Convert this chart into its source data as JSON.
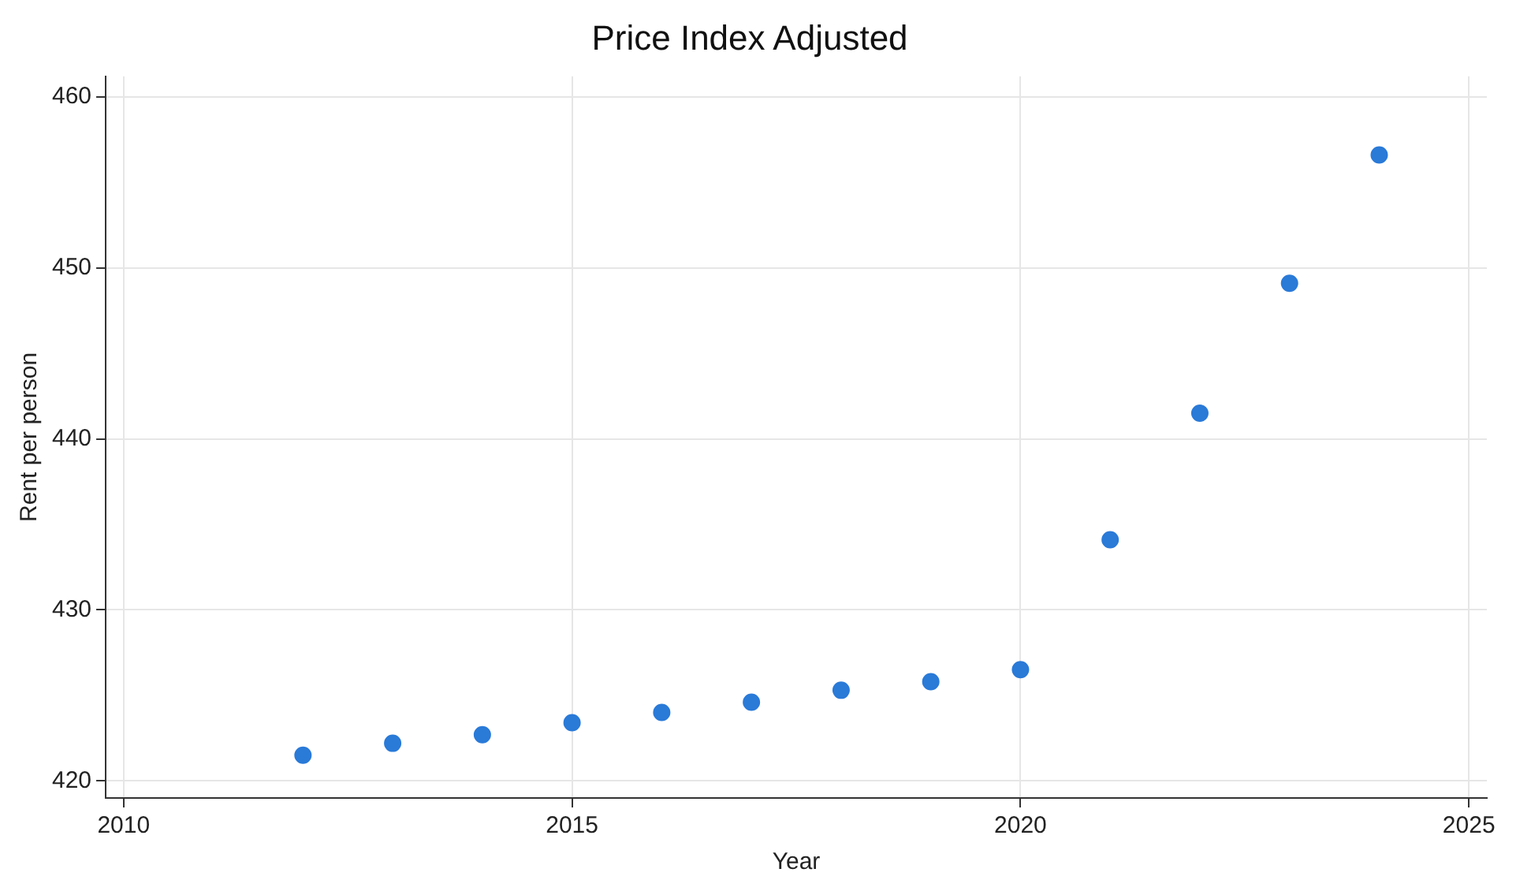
{
  "chart_data": {
    "type": "scatter",
    "title": "Price Index Adjusted",
    "xlabel": "Year",
    "ylabel": "Rent per person",
    "x": [
      2012,
      2013,
      2014,
      2015,
      2016,
      2017,
      2018,
      2019,
      2020,
      2021,
      2022,
      2023,
      2024
    ],
    "series": [
      {
        "color": "#2a7ad8",
        "values": [
          421.5,
          422.2,
          422.7,
          423.4,
          424.0,
          424.6,
          425.3,
          425.8,
          426.5,
          434.1,
          441.5,
          449.1,
          456.6
        ]
      }
    ],
    "xlim": [
      2009.8,
      2025.2
    ],
    "xticks": [
      2010,
      2015,
      2020,
      2025
    ],
    "ylim": [
      419,
      461.2
    ],
    "yticks": [
      420,
      430,
      440,
      450,
      460
    ],
    "grid": true,
    "marker": "circle",
    "legend": false
  }
}
